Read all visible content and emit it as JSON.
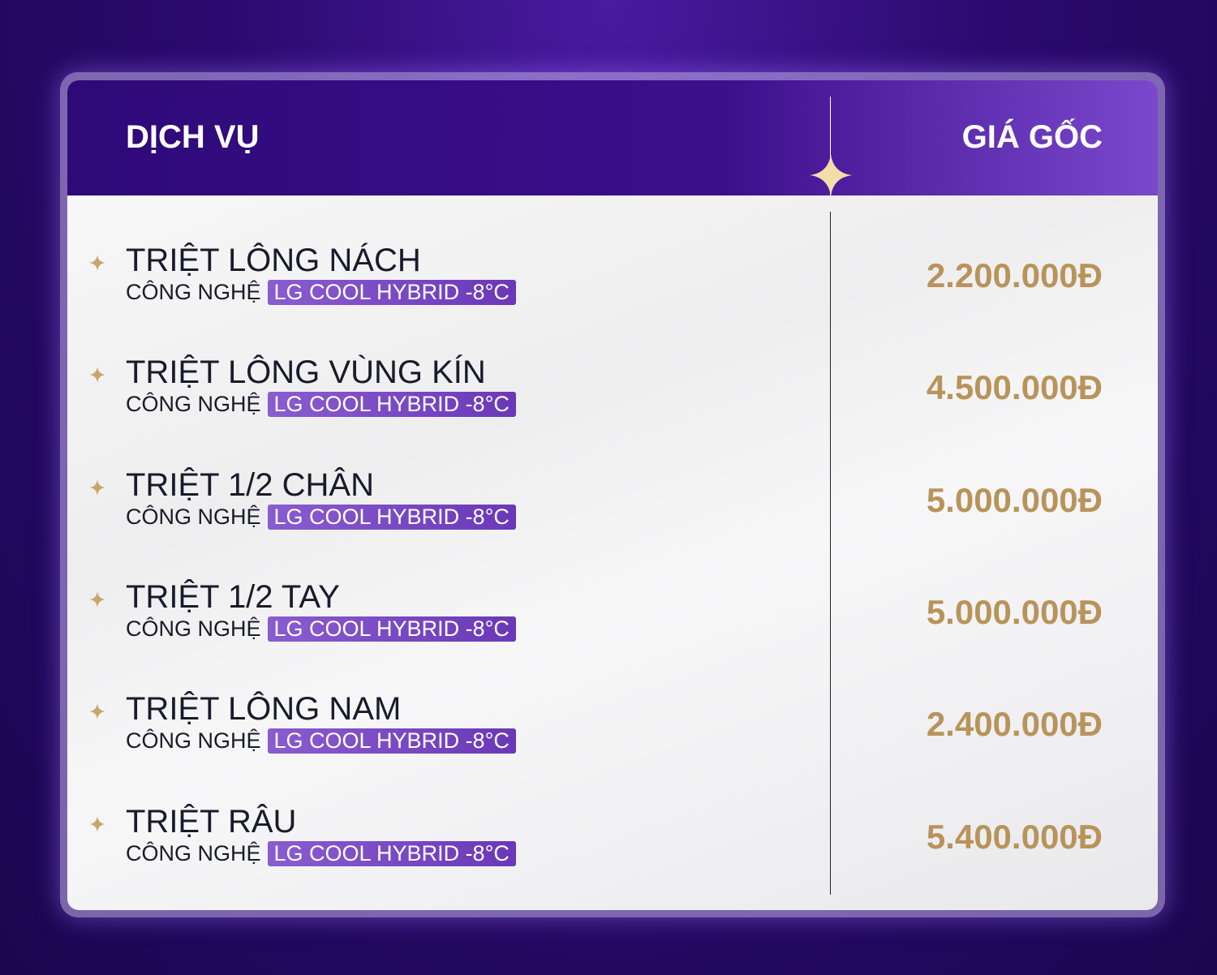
{
  "table": {
    "headers": [
      "DỊCH VỤ",
      "GIÁ GỐC"
    ],
    "rows": [
      {
        "name": "TRIỆT LÔNG NÁCH",
        "tech": "CÔNG NGHỆ",
        "tag": "LG COOL HYBRID -8°C",
        "price": "2.200.000Đ"
      },
      {
        "name": "TRIỆT LÔNG VÙNG KÍN",
        "tech": "CÔNG NGHỆ",
        "tag": "LG COOL HYBRID -8°C",
        "price": "4.500.000Đ"
      },
      {
        "name": "TRIỆT 1/2 CHÂN",
        "tech": "CÔNG NGHỆ",
        "tag": "LG COOL HYBRID -8°C",
        "price": "5.000.000Đ"
      },
      {
        "name": "TRIỆT 1/2 TAY",
        "tech": "CÔNG NGHỆ",
        "tag": "LG COOL HYBRID -8°C",
        "price": "5.000.000Đ"
      },
      {
        "name": "TRIỆT LÔNG NAM",
        "tech": "CÔNG NGHỆ",
        "tag": "LG COOL HYBRID -8°C",
        "price": "2.400.000Đ"
      },
      {
        "name": "TRIỆT RÂU",
        "tech": "CÔNG NGHỆ",
        "tag": "LG COOL HYBRID -8°C",
        "price": "5.400.000Đ"
      }
    ]
  }
}
